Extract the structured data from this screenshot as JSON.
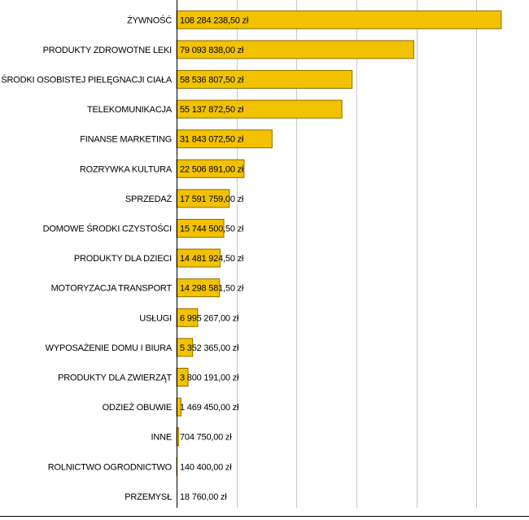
{
  "chart_data": {
    "type": "bar",
    "orientation": "horizontal",
    "categories": [
      "ŻYWNOŚĆ",
      "PRODUKTY ZDROWOTNE LEKI",
      "ŚRODKI OSOBISTEJ PIELĘGNACJI CIAŁA",
      "TELEKOMUNIKACJA",
      "FINANSE MARKETING",
      "ROZRYWKA KULTURA",
      "SPRZEDAŻ",
      "DOMOWE ŚRODKI CZYSTOŚCI",
      "PRODUKTY DLA DZIECI",
      "MOTORYZACJA TRANSPORT",
      "USŁUGI",
      "WYPOSAŻENIE DOMU I BIURA",
      "PRODUKTY DLA ZWIERZĄT",
      "ODZIEŻ OBUWIE",
      "INNE",
      "ROLNICTWO OGRODNICTWO",
      "PRZEMYSŁ"
    ],
    "values": [
      108284238.5,
      79093838.0,
      58536807.5,
      55137872.5,
      31843072.5,
      22506891.0,
      17591759.0,
      15744500.5,
      14481924.5,
      14298581.5,
      6995267.0,
      5352365.0,
      3800191.0,
      1469450.0,
      704750.0,
      140400.0,
      18760.0
    ],
    "data_labels": [
      "108 284 238,50 zł",
      "79 093 838,00 zł",
      "58 536 807,50 zł",
      "55 137 872,50 zł",
      "31 843 072,50 zł",
      "22 506 891,00 zł",
      "17 591 759,00 zł",
      "15 744 500,50 zł",
      "14 481 924,50 zł",
      "14 298 581,50 zł",
      "6 995 267,00 zł",
      "5 352 365,00 zł",
      "3 800 191,00 zł",
      "1 469 450,00 zł",
      "704 750,00 zł",
      "140 400,00 zł",
      "18 760,00 zł"
    ],
    "xlim": [
      0,
      114000000
    ],
    "grid_step": 20000000,
    "grid": true,
    "legend": "none",
    "bar_color": "#f2c200",
    "bar_border": "#8a6d00"
  }
}
